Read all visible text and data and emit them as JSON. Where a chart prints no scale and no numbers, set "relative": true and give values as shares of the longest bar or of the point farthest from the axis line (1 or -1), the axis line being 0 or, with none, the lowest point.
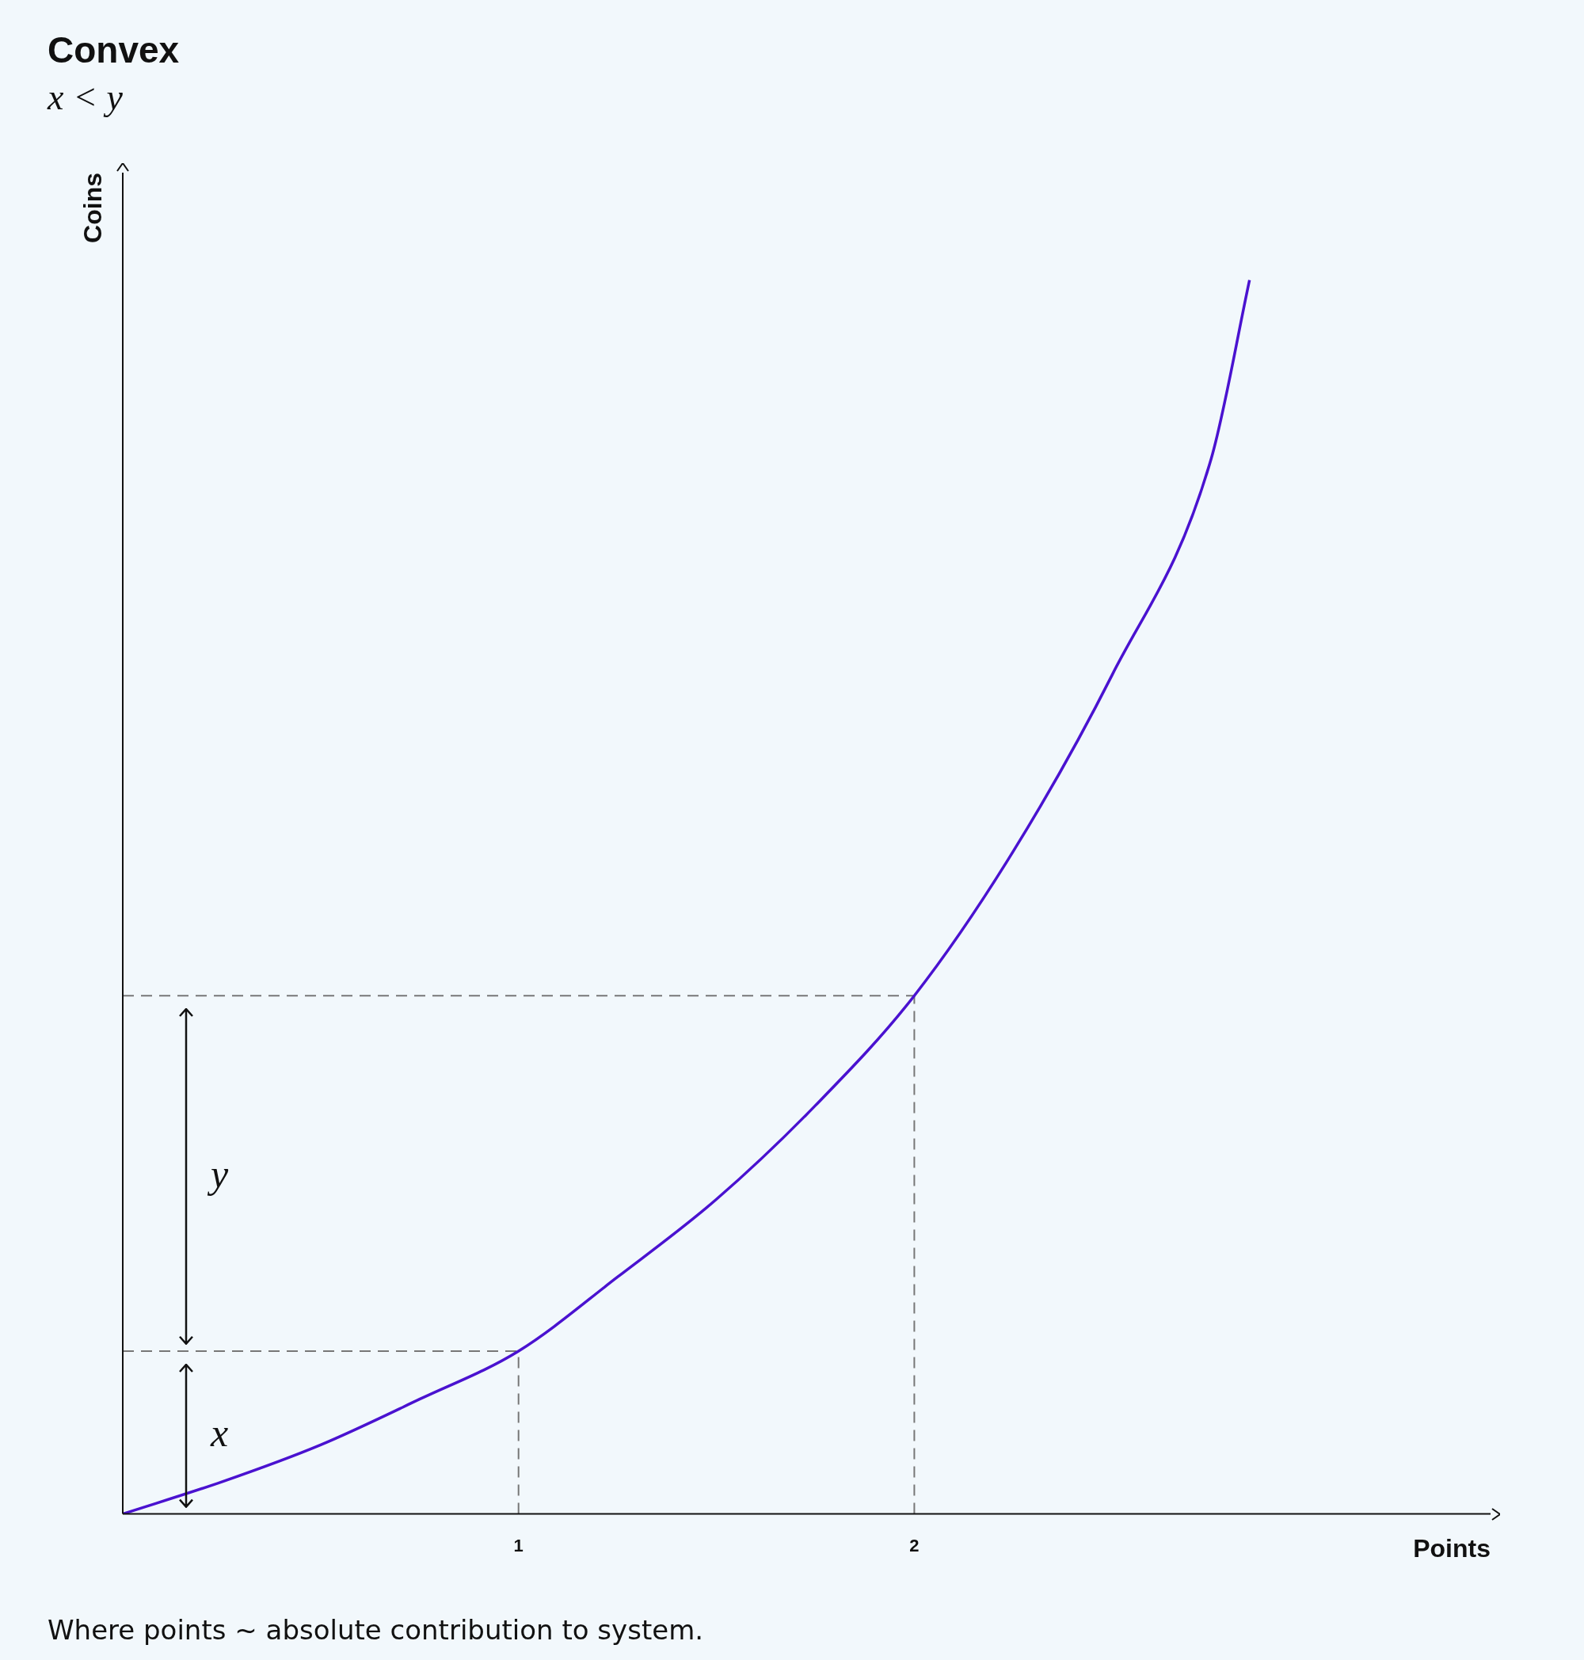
{
  "chart_data": {
    "type": "line",
    "title": "Convex",
    "subtitle": "x < y",
    "xlabel": "Points",
    "ylabel": "Coins",
    "relative": true,
    "xlim": [
      0,
      3.456
    ],
    "xticks": [
      1,
      2
    ],
    "tick_labels": "x",
    "grid": false,
    "legend": false,
    "marker": "none",
    "line_style": "solid",
    "x": [
      0,
      0.25,
      0.5,
      0.75,
      1,
      1.25,
      1.5,
      1.75,
      2,
      2.25,
      2.5,
      2.75,
      2.847
    ],
    "series": [
      {
        "color": "#4a12d0",
        "values": [
          0,
          0.026,
          0.056,
          0.093,
          0.132,
          0.192,
          0.255,
          0.331,
          0.42,
          0.537,
          0.68,
          0.855,
          1
        ]
      }
    ],
    "ref_lines": [
      {
        "axis": "y",
        "value": 0.132,
        "color": "#777777",
        "line_style": "dashed"
      },
      {
        "axis": "y",
        "value": 0.42,
        "color": "#777777",
        "line_style": "dashed"
      },
      {
        "axis": "x",
        "value": 1,
        "color": "#777777",
        "line_style": "dashed"
      },
      {
        "axis": "x",
        "value": 2,
        "color": "#777777",
        "line_style": "dashed"
      }
    ],
    "annotations": [
      "x",
      "y",
      "Where points ~ absolute contribution to system."
    ]
  }
}
